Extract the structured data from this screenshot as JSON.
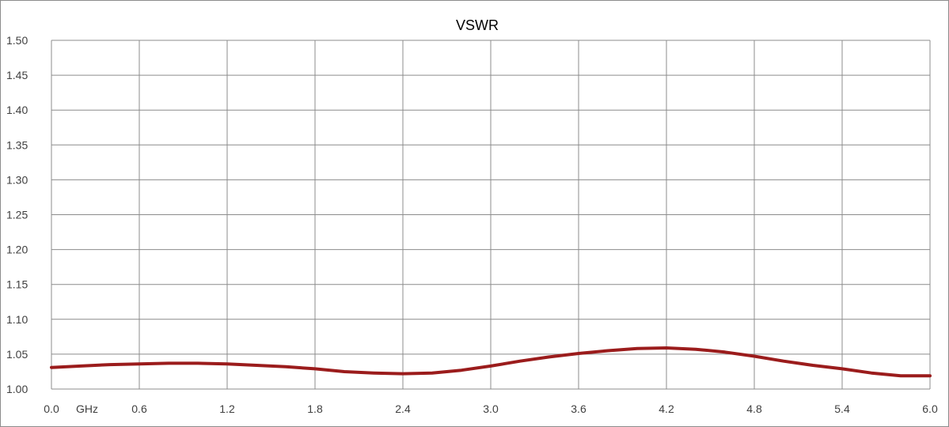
{
  "chart_data": {
    "type": "line",
    "title": "VSWR",
    "xlabel": "",
    "ylabel": "",
    "x_unit_label": "GHz",
    "xlim": [
      0.0,
      6.0
    ],
    "ylim": [
      1.0,
      1.5
    ],
    "x_ticks": [
      "0.0",
      "0.6",
      "1.2",
      "1.8",
      "2.4",
      "3.0",
      "3.6",
      "4.2",
      "4.8",
      "5.4",
      "6.0"
    ],
    "y_ticks": [
      "1.00",
      "1.05",
      "1.10",
      "1.15",
      "1.20",
      "1.25",
      "1.30",
      "1.35",
      "1.40",
      "1.45",
      "1.50"
    ],
    "grid": true,
    "legend": "none",
    "series": [
      {
        "color": "#9b1c1c",
        "x": [
          0.0,
          0.2,
          0.4,
          0.6,
          0.8,
          1.0,
          1.2,
          1.4,
          1.6,
          1.8,
          2.0,
          2.2,
          2.4,
          2.6,
          2.8,
          3.0,
          3.2,
          3.4,
          3.6,
          3.8,
          4.0,
          4.2,
          4.4,
          4.6,
          4.8,
          5.0,
          5.2,
          5.4,
          5.6,
          5.8,
          6.0
        ],
        "y": [
          1.031,
          1.033,
          1.035,
          1.036,
          1.037,
          1.037,
          1.036,
          1.034,
          1.032,
          1.029,
          1.025,
          1.023,
          1.022,
          1.023,
          1.027,
          1.033,
          1.04,
          1.046,
          1.051,
          1.055,
          1.058,
          1.059,
          1.057,
          1.053,
          1.047,
          1.04,
          1.034,
          1.029,
          1.023,
          1.019,
          1.019
        ]
      }
    ]
  }
}
